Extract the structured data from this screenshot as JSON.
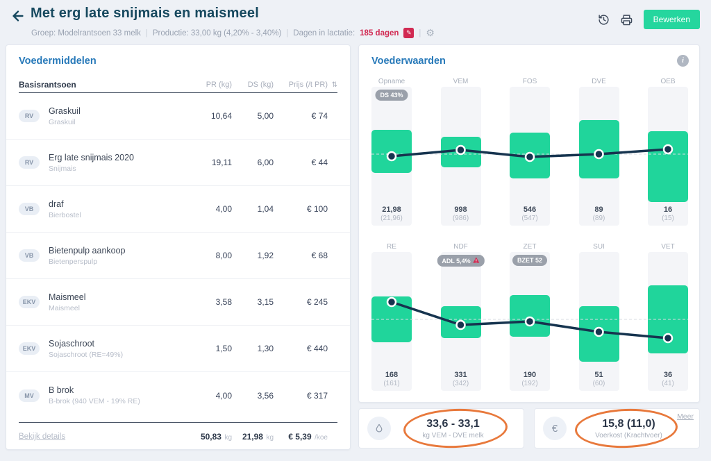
{
  "colors": {
    "accent_green": "#20d59b",
    "navy": "#17495f",
    "heading_blue": "#2779b9",
    "alert_red": "#d12a52",
    "badge_gray": "#9aa0aa",
    "annotation_orange": "#e8793c",
    "line_navy": "#16344f"
  },
  "header": {
    "title": "Met erg late snijmais en maismeel",
    "edit_button": "Bewerken",
    "meta": {
      "groep": "Groep: Modelrantsoen 33 melk",
      "productie": "Productie: 33,00 kg (4,20% - 3,40%)",
      "lactatie_label": "Dagen in lactatie:",
      "lactatie_value": "185 dagen"
    }
  },
  "feed_panel": {
    "title": "Voedermiddelen",
    "section": "Basisrantsoen",
    "columns": {
      "pr": "PR (kg)",
      "ds": "DS (kg)",
      "price": "Prijs (/t PR)",
      "sort": "⇅"
    },
    "rows": [
      {
        "type": "RV",
        "name": "Graskuil",
        "sub": "Graskuil",
        "pr": "10,64",
        "ds": "5,00",
        "price": "€ 74"
      },
      {
        "type": "RV",
        "name": "Erg late snijmais 2020",
        "sub": "Snijmais",
        "pr": "19,11",
        "ds": "6,00",
        "price": "€ 44"
      },
      {
        "type": "VB",
        "name": "draf",
        "sub": "Bierbostel",
        "pr": "4,00",
        "ds": "1,04",
        "price": "€ 100"
      },
      {
        "type": "VB",
        "name": "Bietenpulp aankoop",
        "sub": "Bietenperspulp",
        "pr": "8,00",
        "ds": "1,92",
        "price": "€ 68"
      },
      {
        "type": "EKV",
        "name": "Maismeel",
        "sub": "Maismeel",
        "pr": "3,58",
        "ds": "3,15",
        "price": "€ 245"
      },
      {
        "type": "EKV",
        "name": "Sojaschroot",
        "sub": "Sojaschroot (RE=49%)",
        "pr": "1,50",
        "ds": "1,30",
        "price": "€ 440"
      },
      {
        "type": "MV",
        "name": "B brok",
        "sub": "B-brok (940 VEM - 19% RE)",
        "pr": "4,00",
        "ds": "3,56",
        "price": "€ 317"
      }
    ],
    "footer": {
      "link": "Bekijk details",
      "pr": "50,83",
      "pr_unit": "kg",
      "ds": "21,98",
      "ds_unit": "kg",
      "price": "€ 5,39",
      "price_unit": "/koe"
    }
  },
  "values_panel": {
    "title": "Voederwaarden"
  },
  "chart_data": [
    {
      "type": "bar",
      "metrics": [
        {
          "label": "Opname",
          "value": "21,98",
          "norm": "(21,96)",
          "badge": "DS 43%",
          "bar": [
            0.31,
            0.62
          ],
          "dot": 0.5
        },
        {
          "label": "VEM",
          "value": "998",
          "norm": "(986)",
          "bar": [
            0.36,
            0.58
          ],
          "dot": 0.455
        },
        {
          "label": "FOS",
          "value": "546",
          "norm": "(547)",
          "bar": [
            0.33,
            0.66
          ],
          "dot": 0.505
        },
        {
          "label": "DVE",
          "value": "89",
          "norm": "(89)",
          "bar": [
            0.24,
            0.66
          ],
          "dot": 0.485
        },
        {
          "label": "OEB",
          "value": "16",
          "norm": "(15)",
          "bar": [
            0.32,
            0.83
          ],
          "dot": 0.45
        }
      ],
      "dashed_ref": 0.485
    },
    {
      "type": "bar",
      "metrics": [
        {
          "label": "RE",
          "value": "168",
          "norm": "(161)",
          "bar": [
            0.32,
            0.65
          ],
          "dot": 0.36
        },
        {
          "label": "NDF",
          "value": "331",
          "norm": "(342)",
          "badge": "ADL 5,4%",
          "badge_alert": true,
          "bar": [
            0.39,
            0.62
          ],
          "dot": 0.525
        },
        {
          "label": "ZET",
          "value": "190",
          "norm": "(192)",
          "badge": "BZET 52",
          "bar": [
            0.31,
            0.61
          ],
          "dot": 0.5
        },
        {
          "label": "SUI",
          "value": "51",
          "norm": "(60)",
          "bar": [
            0.39,
            0.79
          ],
          "dot": 0.575
        },
        {
          "label": "VET",
          "value": "36",
          "norm": "(41)",
          "bar": [
            0.24,
            0.73
          ],
          "dot": 0.62
        }
      ],
      "dashed_ref": 0.485
    }
  ],
  "stats": [
    {
      "icon": "droplet-icon",
      "value": "33,6 - 33,1",
      "label": "kg VEM - DVE melk"
    },
    {
      "icon": "euro-icon",
      "value": "15,8 (11,0)",
      "label": "Voerkost (Krachtvoer)",
      "more": "Meer"
    }
  ]
}
